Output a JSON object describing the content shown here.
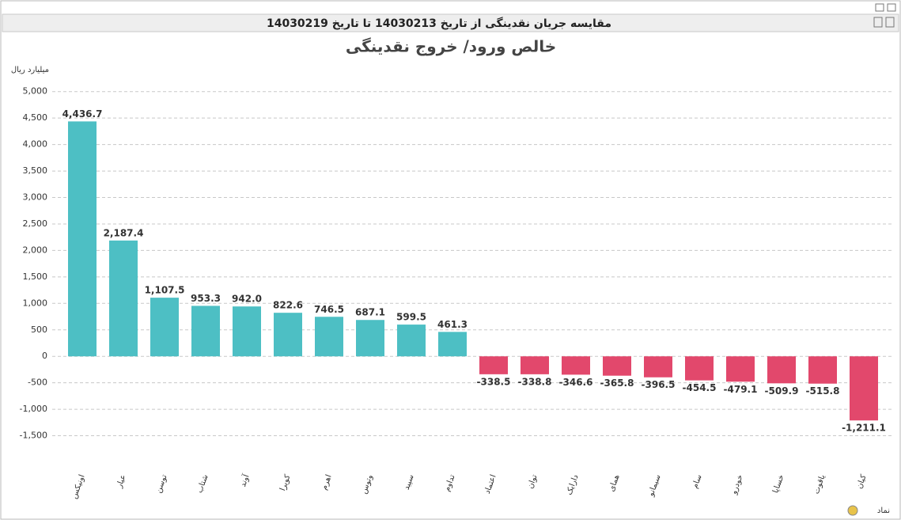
{
  "header": {
    "title": "مقایسه جریان نقدینگی از تاریخ 14030213 تا تاریخ 14030219"
  },
  "chart_data": {
    "type": "bar",
    "title": "خالص ورود/ خروج نقدینگی",
    "y_label": "میلیارد ریال",
    "x_label": "نماد",
    "categories": [
      "اونیکس",
      "عیار",
      "توسن",
      "شتاب",
      "آوند",
      "کویرا",
      "اهرم",
      "وتوس",
      "سپید",
      "تداوم",
      "اعتماد",
      "توان",
      "دارایک",
      "همای",
      "سیمانو",
      "سام",
      "خودرو",
      "خساپا",
      "یاقوت",
      "کیان"
    ],
    "values": [
      4436.7,
      2187.4,
      1107.5,
      953.3,
      942.0,
      822.6,
      746.5,
      687.1,
      599.5,
      461.3,
      -338.5,
      -338.8,
      -346.6,
      -365.8,
      -396.5,
      -454.5,
      -479.1,
      -509.9,
      -515.8,
      -1211.1
    ],
    "value_labels": [
      "4,436.7",
      "2,187.4",
      "1,107.5",
      "953.3",
      "942.0",
      "822.6",
      "746.5",
      "687.1",
      "599.5",
      "461.3",
      "-338.5",
      "-338.8",
      "-346.6",
      "-365.8",
      "-396.5",
      "-454.5",
      "-479.1",
      "-509.9",
      "-515.8",
      "-1,211.1"
    ],
    "positive_color": "#4dbfc4",
    "negative_color": "#e2486c",
    "ylim": [
      -2000,
      5250
    ],
    "yticks": [
      {
        "value": -1500,
        "label": "-1,500"
      },
      {
        "value": -1000,
        "label": "-1,000"
      },
      -500,
      0,
      500,
      {
        "value": 1000,
        "label": "1,000"
      },
      {
        "value": 1500,
        "label": "1,500"
      },
      {
        "value": 2000,
        "label": "2,000"
      },
      {
        "value": 2500,
        "label": "2,500"
      },
      {
        "value": 3000,
        "label": "3,000"
      },
      {
        "value": 3500,
        "label": "3,500"
      },
      {
        "value": 4000,
        "label": "4,000"
      },
      {
        "value": 4500,
        "label": "4,500"
      },
      {
        "value": 5000,
        "label": "5,000"
      }
    ],
    "grid": true
  }
}
